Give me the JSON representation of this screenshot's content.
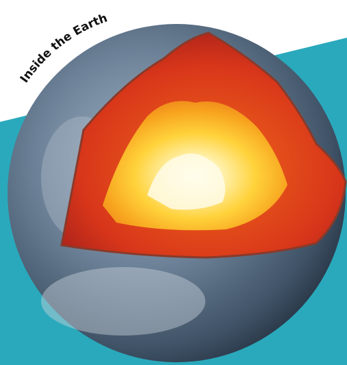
{
  "title": "Inside the Earth"
}
